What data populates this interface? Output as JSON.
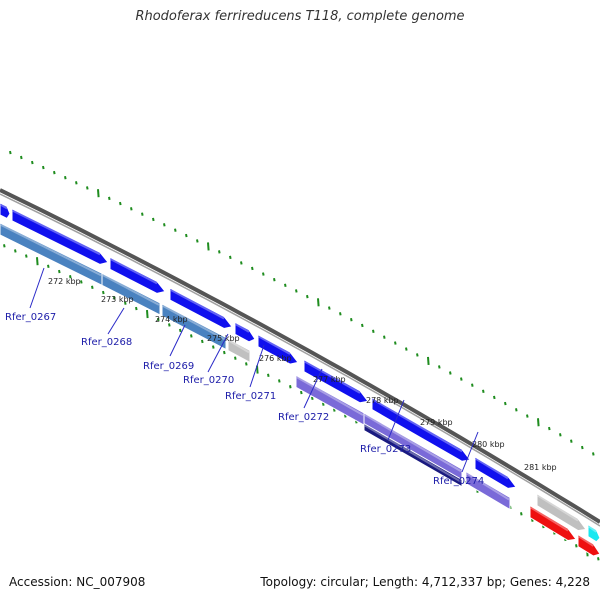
{
  "title": "Rhodoferax ferrireducens T118, complete genome",
  "footer": {
    "accession": "Accession: NC_007908",
    "summary": "Topology: circular; Length: 4,712,337 bp; Genes: 4,228"
  },
  "colors": {
    "backbone": "#8a8a8a",
    "tick": "#1e8c1e",
    "label_link": "#2a2ac8"
  },
  "ticks": [
    {
      "label": "272 kbp"
    },
    {
      "label": "273 kbp"
    },
    {
      "label": "274 kbp"
    },
    {
      "label": "275 kbp"
    },
    {
      "label": "276 kbp"
    },
    {
      "label": "277 kbp"
    },
    {
      "label": "278 kbp"
    },
    {
      "label": "279 kbp"
    },
    {
      "label": "280 kbp"
    },
    {
      "label": "281 kbp"
    }
  ],
  "gene_labels": [
    {
      "label": "Rfer_0267"
    },
    {
      "label": "Rfer_0268"
    },
    {
      "label": "Rfer_0269"
    },
    {
      "label": "Rfer_0270"
    },
    {
      "label": "Rfer_0271"
    },
    {
      "label": "Rfer_0272"
    },
    {
      "label": "Rfer_0273"
    },
    {
      "label": "Rfer_0274"
    }
  ],
  "features": [
    {
      "kind": "cds",
      "strand": "+",
      "color": "#1010ee"
    },
    {
      "kind": "cds",
      "strand": "+",
      "color": "#1010ee"
    },
    {
      "kind": "cds",
      "strand": "+",
      "color": "#1010ee"
    },
    {
      "kind": "cds",
      "strand": "+",
      "color": "#1010ee"
    },
    {
      "kind": "cds",
      "strand": "+",
      "color": "#1010ee"
    },
    {
      "kind": "cds",
      "strand": "+",
      "color": "#1010ee"
    },
    {
      "kind": "cds",
      "strand": "+",
      "color": "#1010ee"
    },
    {
      "kind": "cds",
      "strand": "+",
      "color": "#1010ee"
    },
    {
      "kind": "cds",
      "strand": "+",
      "color": "#1010ee"
    },
    {
      "kind": "other",
      "strand": "+",
      "color": "#c0c0c0"
    },
    {
      "kind": "other",
      "strand": "+",
      "color": "#18e8f0"
    },
    {
      "kind": "rna",
      "strand": "+",
      "color": "#ee1010"
    },
    {
      "kind": "rna",
      "strand": "+",
      "color": "#ee1010"
    },
    {
      "kind": "cog",
      "strand": "-",
      "color": "#4a82c0"
    },
    {
      "kind": "cog",
      "strand": "-",
      "color": "#4a82c0"
    },
    {
      "kind": "cog",
      "strand": "-",
      "color": "#4a82c0"
    },
    {
      "kind": "other",
      "strand": "-",
      "color": "#c0c0c0"
    },
    {
      "kind": "cog",
      "strand": "-",
      "color": "#7a6ad8"
    },
    {
      "kind": "cog",
      "strand": "-",
      "color": "#7a6ad8"
    },
    {
      "kind": "cog",
      "strand": "-",
      "color": "#1a1a80"
    },
    {
      "kind": "cog",
      "strand": "-",
      "color": "#7a6ad8"
    }
  ]
}
